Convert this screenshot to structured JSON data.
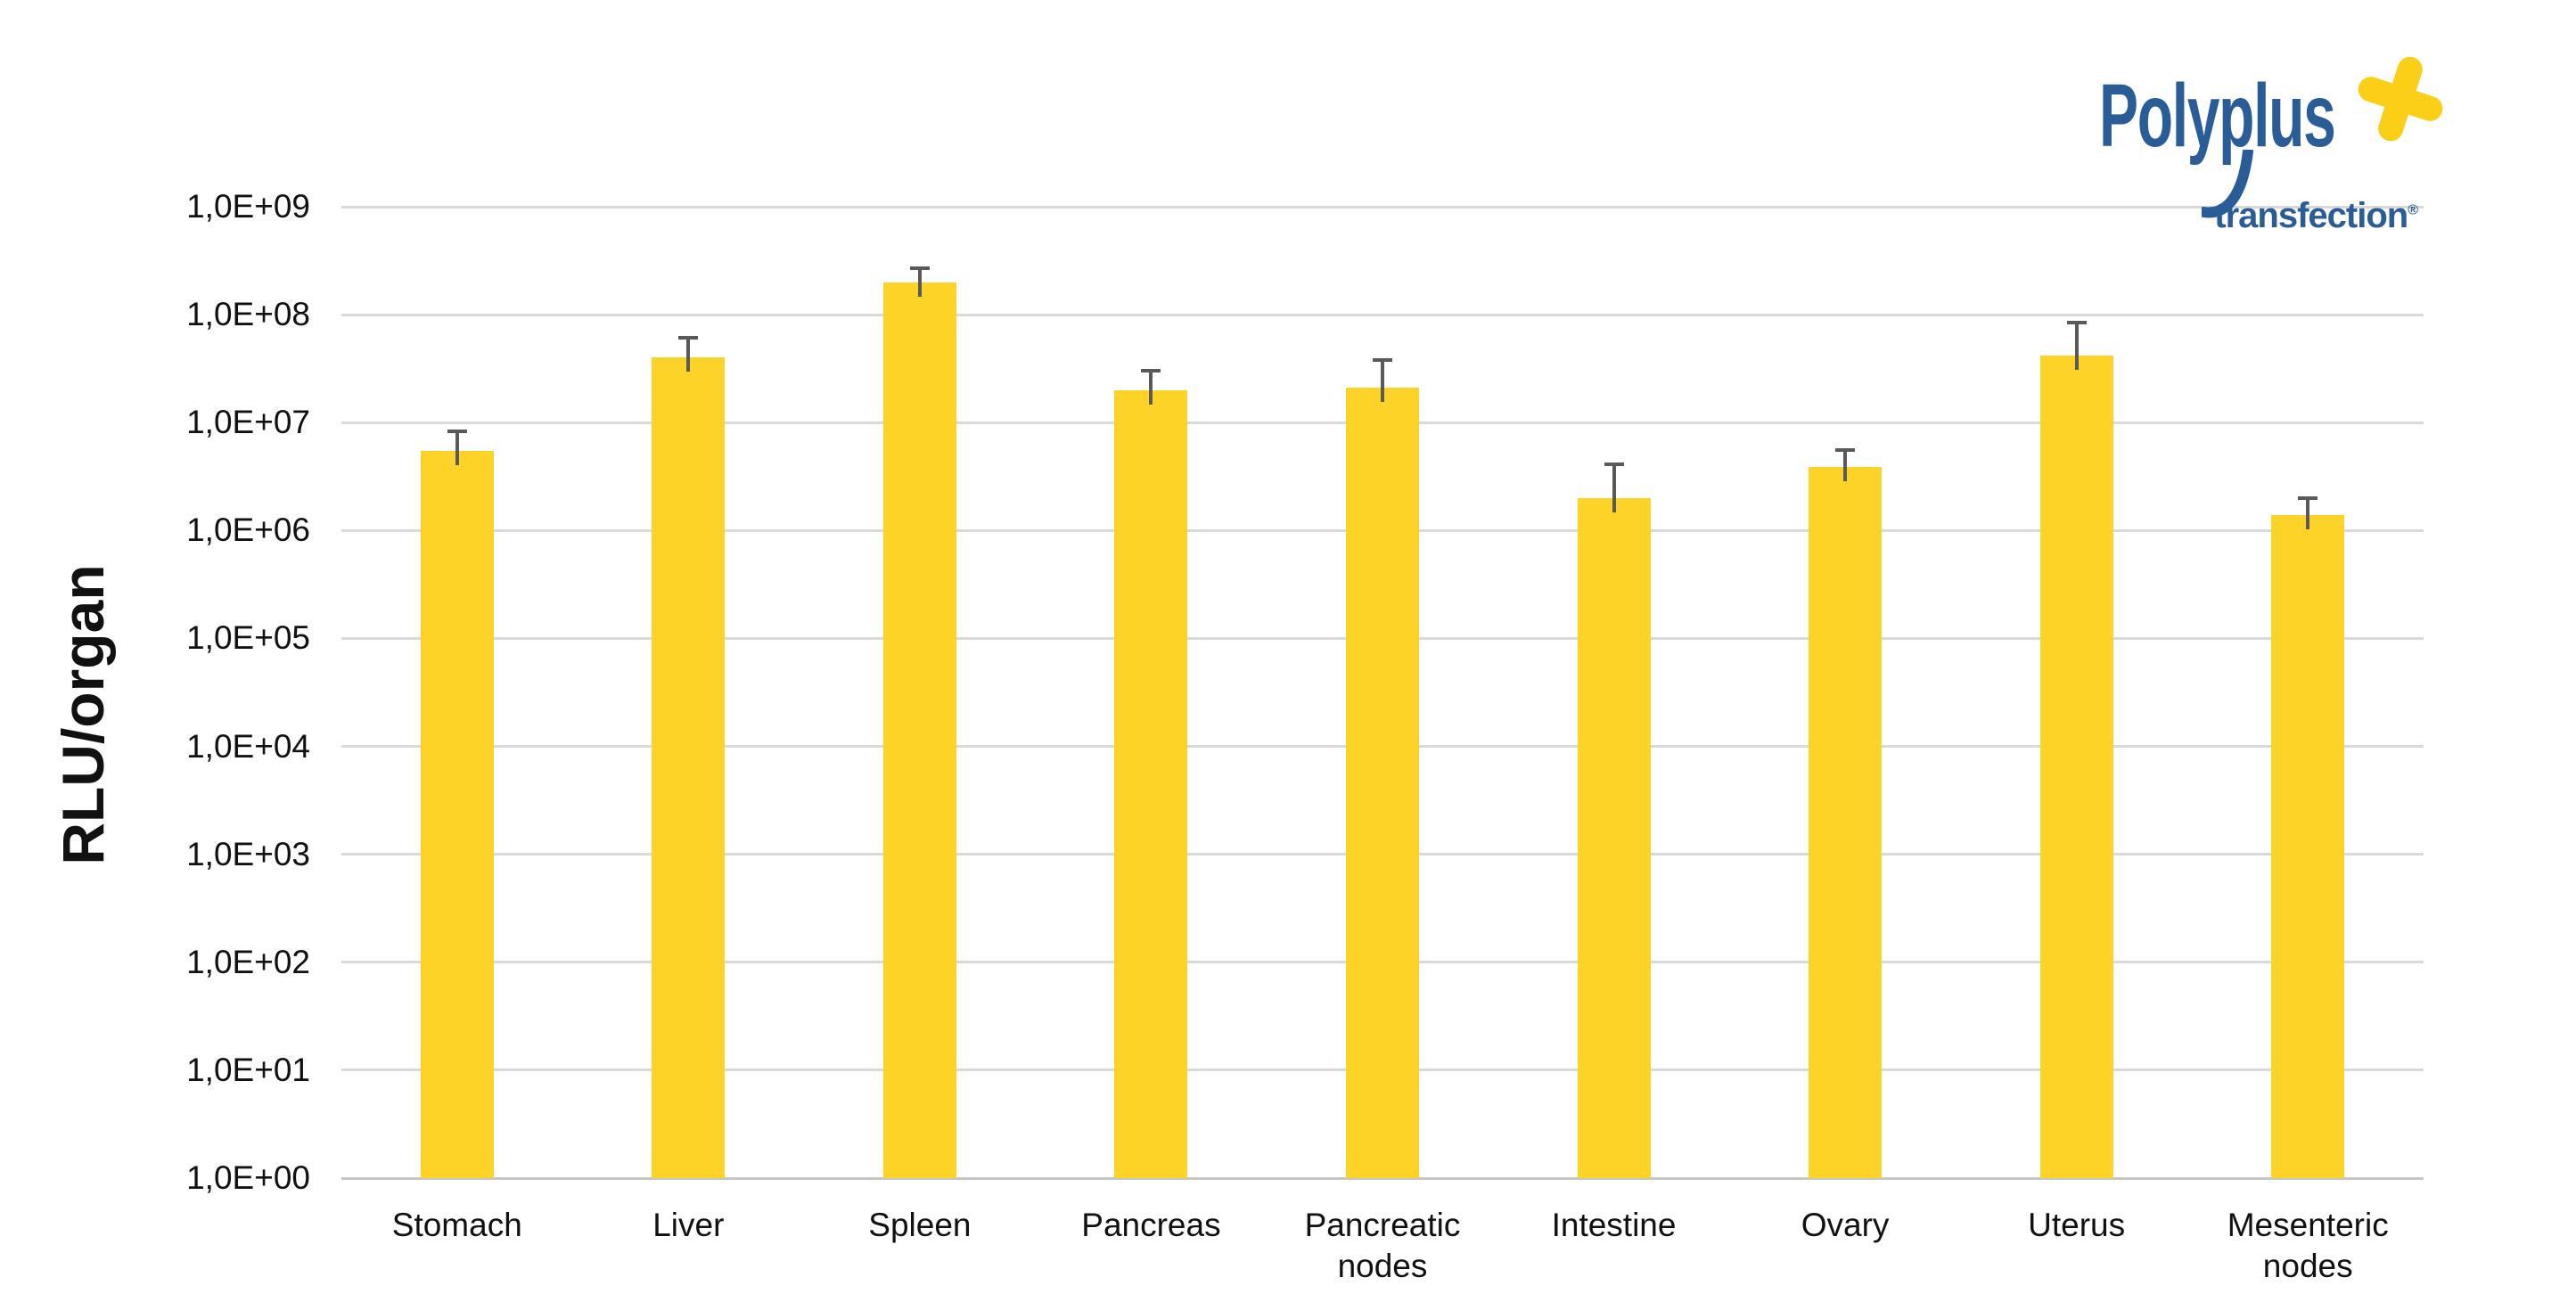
{
  "page": {
    "background": "#FFFFFF"
  },
  "logo": {
    "brand": "Polyplus",
    "sub": "transfection",
    "registered": "®",
    "blue": "#2A5D97",
    "yellow": "#FBCF17",
    "plus_icon": "four-point-plus-sprite"
  },
  "chart_data": {
    "type": "bar",
    "log_scale": true,
    "ylabel": "RLU/organ",
    "xlabel": "",
    "ylim": [
      1,
      1000000000
    ],
    "grid": true,
    "legend": "none",
    "bar_color": "#FDD328",
    "error_bar_color": "#595959",
    "gridline_color": "#D9D9D9",
    "categories": [
      "Stomach",
      "Liver",
      "Spleen",
      "Pancreas",
      "Pancreatic nodes",
      "Intestine",
      "Ovary",
      "Uterus",
      "Mesenteric nodes"
    ],
    "values": [
      5500000.0,
      40000000.0,
      200000000.0,
      20000000.0,
      21000000.0,
      2000000.0,
      3900000.0,
      42000000.0,
      1400000.0
    ],
    "error_upper": [
      8300000.0,
      61000000.0,
      270000000.0,
      30000000.0,
      38000000.0,
      4100000.0,
      5600000.0,
      84000000.0,
      2000000.0
    ],
    "y_tick_labels": [
      "1,0E+00",
      "1,0E+01",
      "1,0E+02",
      "1,0E+03",
      "1,0E+04",
      "1,0E+05",
      "1,0E+06",
      "1,0E+07",
      "1,0E+08",
      "1,0E+09"
    ]
  }
}
